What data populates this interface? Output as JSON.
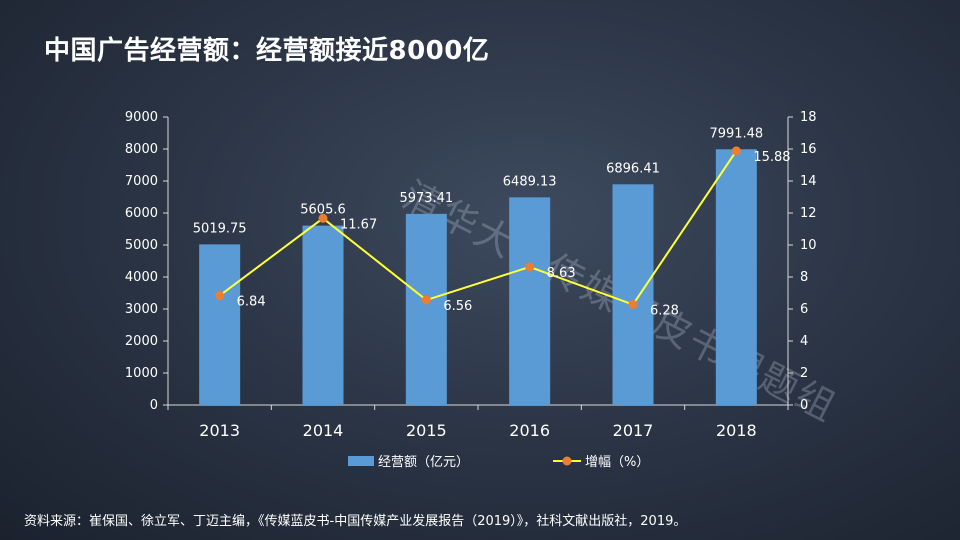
{
  "title": "中国广告经营额：经营额接近8000亿",
  "watermark": "清华大学传媒蓝皮书课题组",
  "source": "资料来源：崔保国、徐立军、丁迈主编，《传媒蓝皮书-中国传媒产业发展报告（2019）》，社科文献出版社，2019。",
  "chart_data": {
    "type": "bar",
    "categories": [
      "2013",
      "2014",
      "2015",
      "2016",
      "2017",
      "2018"
    ],
    "series": [
      {
        "name": "经营额（亿元）",
        "type": "bar",
        "axis": "left",
        "values": [
          5019.75,
          5605.6,
          5973.41,
          6489.13,
          6896.41,
          7991.48
        ],
        "labels": [
          "5019.75",
          "5605.6",
          "5973.41",
          "6489.13",
          "6896.41",
          "7991.48"
        ],
        "color": "#5b9bd5"
      },
      {
        "name": "增幅（%）",
        "type": "line",
        "axis": "right",
        "values": [
          6.84,
          11.67,
          6.56,
          8.63,
          6.28,
          15.88
        ],
        "labels": [
          "6.84",
          "11.67",
          "6.56",
          "8.63",
          "6.28",
          "15.88"
        ],
        "color": "#ffff33",
        "marker_color": "#ed7d31"
      }
    ],
    "y_left": {
      "min": 0,
      "max": 9000,
      "ticks": [
        "0",
        "1000",
        "2000",
        "3000",
        "4000",
        "5000",
        "6000",
        "7000",
        "8000",
        "9000"
      ]
    },
    "y_right": {
      "min": 0,
      "max": 18,
      "ticks": [
        "0",
        "2",
        "4",
        "6",
        "8",
        "10",
        "12",
        "14",
        "16",
        "18"
      ]
    },
    "grid": false,
    "legend": "bottom"
  }
}
